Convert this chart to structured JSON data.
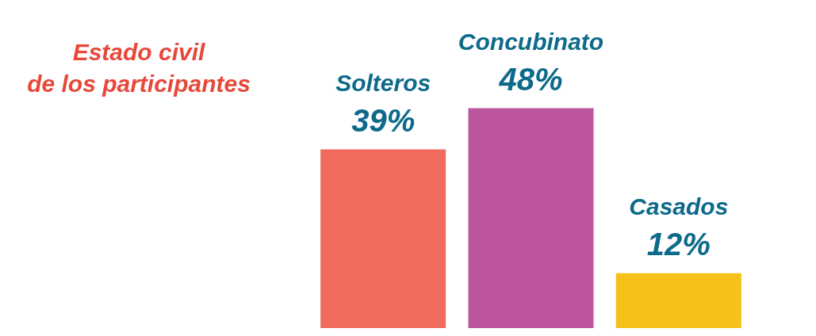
{
  "chart_data": {
    "type": "bar",
    "title": "Estado civil\nde los participantes",
    "categories": [
      "Solteros",
      "Concubinato",
      "Casados"
    ],
    "values": [
      39,
      48,
      12
    ],
    "colors": [
      "#f06a5e",
      "#bc549e",
      "#f5c118"
    ],
    "value_labels": [
      "39%",
      "48%",
      "12%"
    ]
  }
}
